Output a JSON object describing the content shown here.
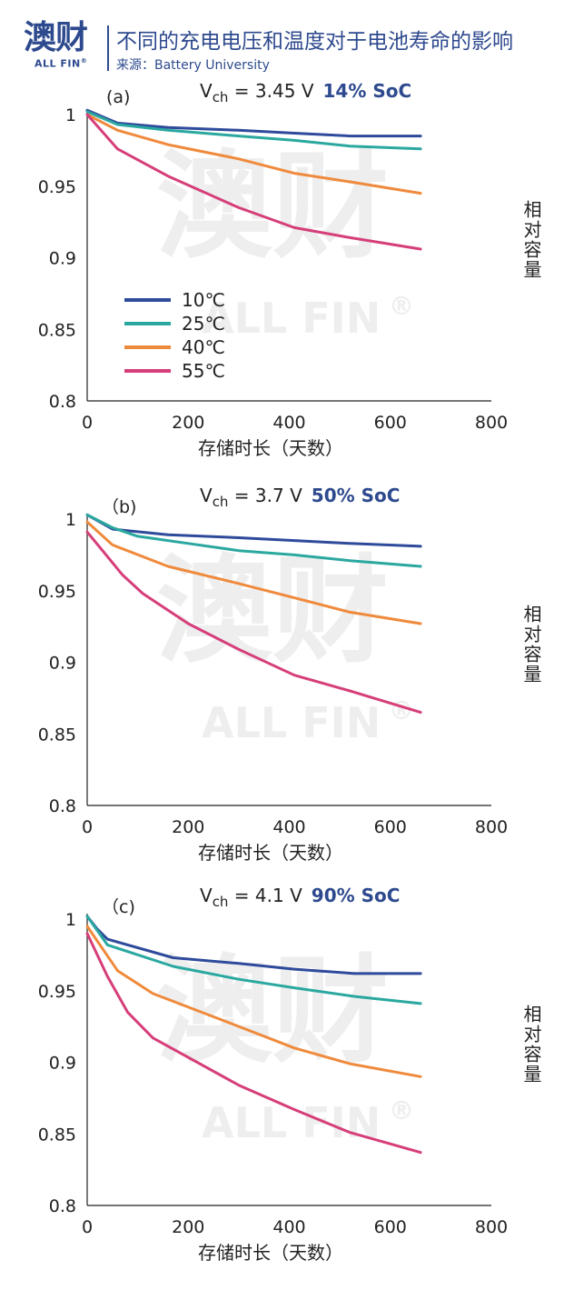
{
  "header": {
    "logo": "澳财",
    "logo_sub": "ALL FIN",
    "logo_reg": "®",
    "title": "不同的充电电压和温度对于电池寿命的影响",
    "source": "来源：Battery University"
  },
  "watermark": {
    "main": "澳财",
    "sub": "ALL FIN",
    "reg": "®"
  },
  "colors": {
    "10C": "#2e4a9b",
    "25C": "#2aa8a0",
    "40C": "#ef8a3c",
    "55C": "#d63e7a",
    "axis": "#222222",
    "accent": "#2e4a8e"
  },
  "chart_data": [
    {
      "type": "line",
      "panel_label": "(a)",
      "vch_prefix": "V",
      "vch_sub": "ch",
      "vch_value": " = 3.45 V",
      "soc": "14% SoC",
      "xlabel": "存储时长（天数）",
      "ylabel": "相对容量",
      "xlim": [
        0,
        800
      ],
      "ylim": [
        0.8,
        1
      ],
      "xticks": [
        "0",
        "200",
        "400",
        "600",
        "800"
      ],
      "yticks": [
        "1",
        "0.95",
        "0.9",
        "0.85",
        "0.8"
      ],
      "legend": [
        "10℃",
        "25℃",
        "40℃",
        "55℃"
      ],
      "series": [
        {
          "name": "10℃",
          "color_key": "10C",
          "x": [
            0,
            60,
            160,
            300,
            410,
            520,
            660
          ],
          "y": [
            1.003,
            0.994,
            0.991,
            0.989,
            0.987,
            0.985,
            0.985
          ]
        },
        {
          "name": "25℃",
          "color_key": "25C",
          "x": [
            0,
            60,
            160,
            300,
            410,
            520,
            660
          ],
          "y": [
            1.002,
            0.993,
            0.989,
            0.985,
            0.982,
            0.978,
            0.976
          ]
        },
        {
          "name": "40℃",
          "color_key": "40C",
          "x": [
            0,
            60,
            160,
            300,
            410,
            520,
            660
          ],
          "y": [
            1.0,
            0.989,
            0.979,
            0.969,
            0.959,
            0.953,
            0.945
          ]
        },
        {
          "name": "55℃",
          "color_key": "55C",
          "x": [
            0,
            60,
            160,
            300,
            410,
            520,
            660
          ],
          "y": [
            1.0,
            0.976,
            0.957,
            0.935,
            0.921,
            0.914,
            0.906
          ]
        }
      ]
    },
    {
      "type": "line",
      "panel_label": "（b)",
      "vch_prefix": "V",
      "vch_sub": "ch",
      "vch_value": " = 3.7 V",
      "soc": "50% SoC",
      "xlabel": "存储时长（天数）",
      "ylabel": "相对容量",
      "xlim": [
        0,
        800
      ],
      "ylim": [
        0.8,
        1
      ],
      "xticks": [
        "0",
        "200",
        "400",
        "600",
        "800"
      ],
      "yticks": [
        "1",
        "0.95",
        "0.9",
        "0.85",
        "0.8"
      ],
      "legend": [],
      "series": [
        {
          "name": "10℃",
          "color_key": "10C",
          "x": [
            0,
            50,
            160,
            300,
            410,
            520,
            660
          ],
          "y": [
            1.003,
            0.993,
            0.989,
            0.987,
            0.985,
            0.983,
            0.981
          ]
        },
        {
          "name": "25℃",
          "color_key": "25C",
          "x": [
            0,
            50,
            100,
            200,
            300,
            410,
            520,
            660
          ],
          "y": [
            1.003,
            0.994,
            0.988,
            0.983,
            0.978,
            0.975,
            0.971,
            0.967
          ]
        },
        {
          "name": "40℃",
          "color_key": "40C",
          "x": [
            0,
            50,
            160,
            300,
            410,
            520,
            660
          ],
          "y": [
            0.998,
            0.982,
            0.967,
            0.955,
            0.945,
            0.935,
            0.927
          ]
        },
        {
          "name": "55℃",
          "color_key": "55C",
          "x": [
            0,
            70,
            110,
            200,
            300,
            410,
            520,
            660
          ],
          "y": [
            0.991,
            0.961,
            0.948,
            0.927,
            0.909,
            0.891,
            0.88,
            0.865
          ]
        }
      ]
    },
    {
      "type": "line",
      "panel_label": "（c)",
      "vch_prefix": "V",
      "vch_sub": "ch",
      "vch_value": " = 4.1 V",
      "soc": "90% SoC",
      "xlabel": "存储时长（天数）",
      "ylabel": "相对容量",
      "xlim": [
        0,
        800
      ],
      "ylim": [
        0.8,
        1
      ],
      "xticks": [
        "0",
        "200",
        "400",
        "600",
        "800"
      ],
      "yticks": [
        "1",
        "0.95",
        "0.9",
        "0.85",
        "0.8"
      ],
      "legend": [],
      "series": [
        {
          "name": "10℃",
          "color_key": "10C",
          "x": [
            0,
            20,
            40,
            170,
            300,
            410,
            530,
            660
          ],
          "y": [
            1.002,
            0.993,
            0.986,
            0.973,
            0.969,
            0.965,
            0.962,
            0.962
          ]
        },
        {
          "name": "25℃",
          "color_key": "25C",
          "x": [
            0,
            40,
            170,
            300,
            410,
            530,
            660
          ],
          "y": [
            1.002,
            0.982,
            0.967,
            0.958,
            0.952,
            0.946,
            0.941
          ]
        },
        {
          "name": "40℃",
          "color_key": "40C",
          "x": [
            0,
            60,
            130,
            300,
            410,
            520,
            660
          ],
          "y": [
            0.995,
            0.964,
            0.948,
            0.925,
            0.91,
            0.899,
            0.89
          ]
        },
        {
          "name": "55℃",
          "color_key": "55C",
          "x": [
            0,
            40,
            80,
            130,
            300,
            410,
            520,
            660
          ],
          "y": [
            0.99,
            0.96,
            0.935,
            0.917,
            0.884,
            0.867,
            0.851,
            0.837
          ]
        }
      ]
    }
  ]
}
